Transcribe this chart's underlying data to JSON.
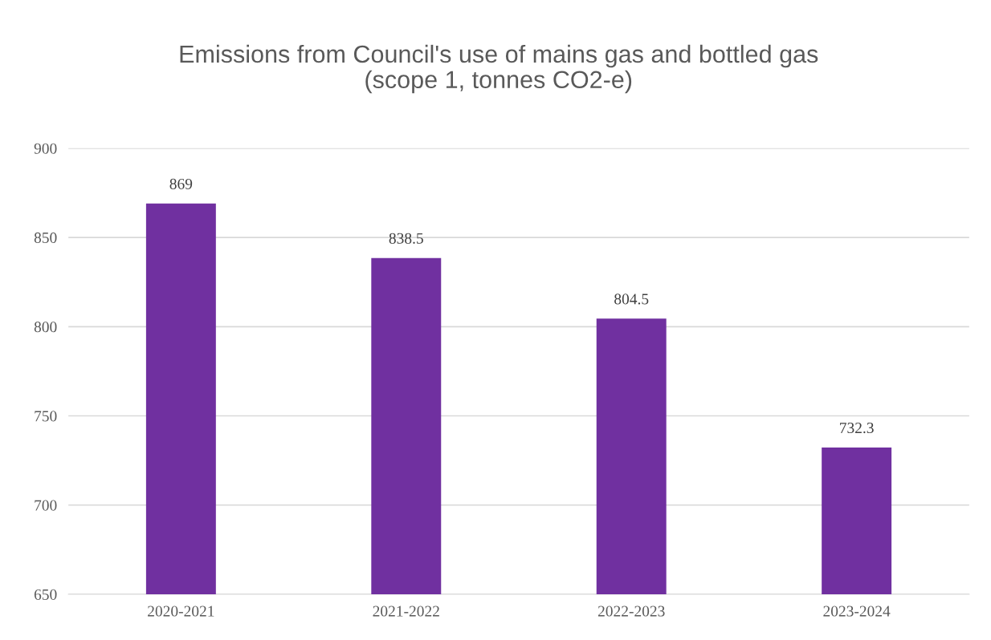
{
  "chart_data": {
    "type": "bar",
    "title": "Emissions from Council's use of mains gas and bottled gas\n(scope 1, tonnes CO2-e)",
    "categories": [
      "2020-2021",
      "2021-2022",
      "2022-2023",
      "2023-2024"
    ],
    "values": [
      869,
      838.5,
      804.5,
      732.3
    ],
    "color": "#7030a0",
    "ylim": [
      650,
      900
    ],
    "yticks": [
      650,
      700,
      750,
      800,
      850,
      900
    ],
    "grid": "y",
    "data_labels": true
  }
}
